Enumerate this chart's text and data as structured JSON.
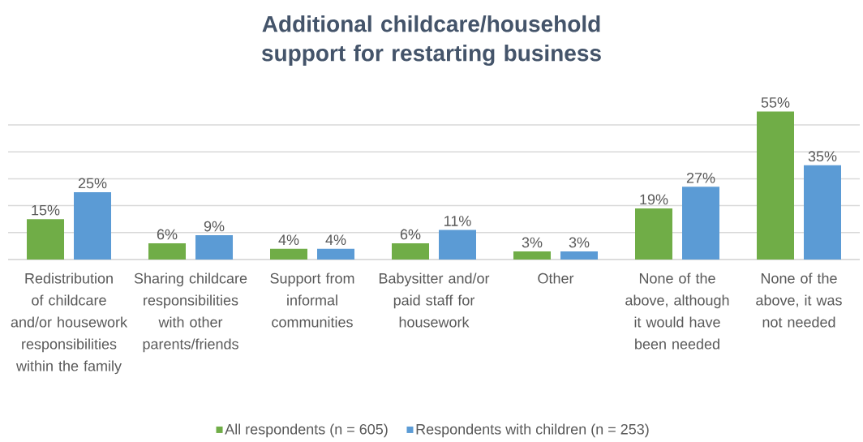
{
  "chart_data": {
    "type": "bar",
    "title": "Additional childcare/household support for restarting business",
    "categories": [
      "Redistribution of childcare and/or housework responsibilities within the family",
      "Sharing childcare responsibilities with other parents/friends",
      "Support from informal communities",
      "Babysitter and/or paid staff for housework",
      "Other",
      "None of the above, although it would have been needed",
      "None of the above, it was not needed"
    ],
    "series": [
      {
        "name": "All respondents (n = 605)",
        "color": "#70ad47",
        "values": [
          15,
          6,
          4,
          6,
          3,
          19,
          55
        ],
        "value_labels": [
          "15%",
          "6%",
          "4%",
          "6%",
          "3%",
          "19%",
          "55%"
        ]
      },
      {
        "name": "Respondents with children (n = 253)",
        "color": "#5b9bd5",
        "values": [
          25,
          9,
          4,
          11,
          3,
          27,
          35
        ],
        "value_labels": [
          "25%",
          "9%",
          "4%",
          "11%",
          "3%",
          "27%",
          "35%"
        ]
      }
    ],
    "tick_labels": "x",
    "grid": "y",
    "legend": "bottom"
  }
}
